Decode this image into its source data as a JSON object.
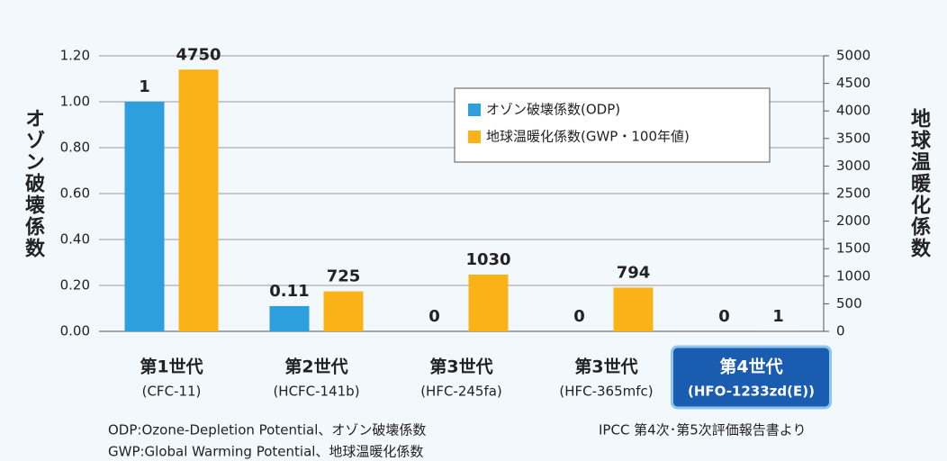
{
  "chart_data": {
    "type": "bar",
    "categories": [
      "第1世代",
      "第2世代",
      "第3世代",
      "第3世代",
      "第4世代"
    ],
    "category_sublabels": [
      "(CFC-11)",
      "(HCFC-141b)",
      "(HFC-245fa)",
      "(HFC-365mfc)",
      "(HFO-1233zd(E))"
    ],
    "highlight_index": 4,
    "series": [
      {
        "name": "オゾン破壊係数(ODP)",
        "color": "#2d9fdc",
        "values": [
          1,
          0.11,
          0,
          0,
          0
        ]
      },
      {
        "name": "地球温暖化係数(GWP・100年値)",
        "color": "#fbb216",
        "axis": "y2",
        "values": [
          4750,
          725,
          1030,
          794,
          1
        ]
      }
    ],
    "ylabel": "オゾン破壊係数",
    "y2label": "地球温暖化係数",
    "ylim": [
      0,
      1.2
    ],
    "yticks": [
      {
        "value": 0,
        "label": "0.00"
      },
      {
        "value": 0.2,
        "label": "0.20"
      },
      {
        "value": 0.4,
        "label": "0.40"
      },
      {
        "value": 0.6,
        "label": "0.60"
      },
      {
        "value": 0.8,
        "label": "0.80"
      },
      {
        "value": 1,
        "label": "1.00"
      },
      {
        "value": 1.2,
        "label": "1.20"
      }
    ],
    "y2lim": [
      0,
      5000
    ],
    "y2ticks": [
      0,
      500,
      1000,
      1500,
      2000,
      2500,
      3000,
      3500,
      4000,
      4500,
      5000
    ],
    "grid": true,
    "notes": [
      "ODP:Ozone-Depletion  Potential、オゾン破壊係数",
      "GWP:Global Warming Potential、地球温暖化係数"
    ],
    "source": "IPCC 第4次･第5次評価報告書より"
  }
}
